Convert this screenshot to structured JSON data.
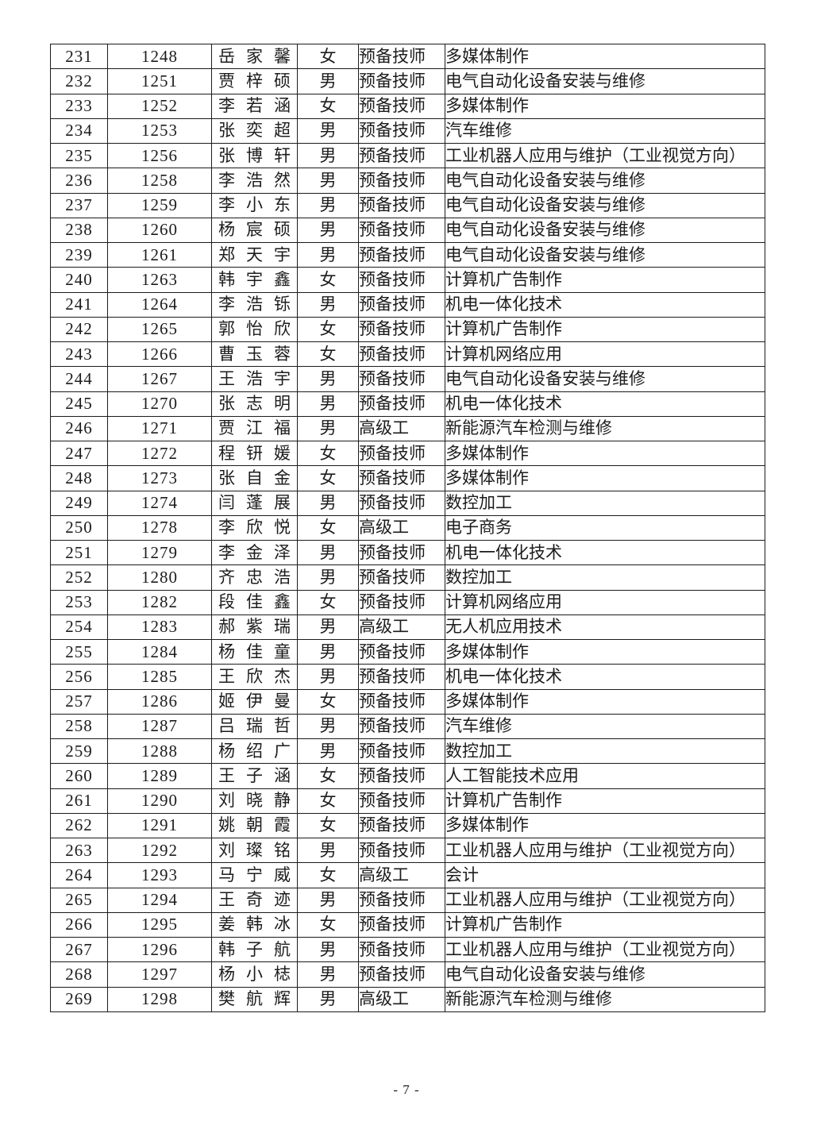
{
  "page": {
    "footer_page_number": "- 7 -"
  },
  "table": {
    "rows": [
      {
        "seq": "231",
        "code": "1248",
        "name": "岳家馨",
        "gender": "女",
        "level": "预备技师",
        "major": "多媒体制作"
      },
      {
        "seq": "232",
        "code": "1251",
        "name": "贾梓硕",
        "gender": "男",
        "level": "预备技师",
        "major": "电气自动化设备安装与维修"
      },
      {
        "seq": "233",
        "code": "1252",
        "name": "李若涵",
        "gender": "女",
        "level": "预备技师",
        "major": "多媒体制作"
      },
      {
        "seq": "234",
        "code": "1253",
        "name": "张奕超",
        "gender": "男",
        "level": "预备技师",
        "major": "汽车维修"
      },
      {
        "seq": "235",
        "code": "1256",
        "name": "张博轩",
        "gender": "男",
        "level": "预备技师",
        "major": "工业机器人应用与维护（工业视觉方向）"
      },
      {
        "seq": "236",
        "code": "1258",
        "name": "李浩然",
        "gender": "男",
        "level": "预备技师",
        "major": "电气自动化设备安装与维修"
      },
      {
        "seq": "237",
        "code": "1259",
        "name": "李小东",
        "gender": "男",
        "level": "预备技师",
        "major": "电气自动化设备安装与维修"
      },
      {
        "seq": "238",
        "code": "1260",
        "name": "杨宸硕",
        "gender": "男",
        "level": "预备技师",
        "major": "电气自动化设备安装与维修"
      },
      {
        "seq": "239",
        "code": "1261",
        "name": "郑天宇",
        "gender": "男",
        "level": "预备技师",
        "major": "电气自动化设备安装与维修"
      },
      {
        "seq": "240",
        "code": "1263",
        "name": "韩宇鑫",
        "gender": "女",
        "level": "预备技师",
        "major": "计算机广告制作"
      },
      {
        "seq": "241",
        "code": "1264",
        "name": "李浩铄",
        "gender": "男",
        "level": "预备技师",
        "major": "机电一体化技术"
      },
      {
        "seq": "242",
        "code": "1265",
        "name": "郭怡欣",
        "gender": "女",
        "level": "预备技师",
        "major": "计算机广告制作"
      },
      {
        "seq": "243",
        "code": "1266",
        "name": "曹玉蓉",
        "gender": "女",
        "level": "预备技师",
        "major": "计算机网络应用"
      },
      {
        "seq": "244",
        "code": "1267",
        "name": "王浩宇",
        "gender": "男",
        "level": "预备技师",
        "major": "电气自动化设备安装与维修"
      },
      {
        "seq": "245",
        "code": "1270",
        "name": "张志明",
        "gender": "男",
        "level": "预备技师",
        "major": "机电一体化技术"
      },
      {
        "seq": "246",
        "code": "1271",
        "name": "贾江福",
        "gender": "男",
        "level": "高级工",
        "major": "新能源汽车检测与维修"
      },
      {
        "seq": "247",
        "code": "1272",
        "name": "程钘媛",
        "gender": "女",
        "level": "预备技师",
        "major": "多媒体制作"
      },
      {
        "seq": "248",
        "code": "1273",
        "name": "张自金",
        "gender": "女",
        "level": "预备技师",
        "major": "多媒体制作"
      },
      {
        "seq": "249",
        "code": "1274",
        "name": "闫蓬展",
        "gender": "男",
        "level": "预备技师",
        "major": "数控加工"
      },
      {
        "seq": "250",
        "code": "1278",
        "name": "李欣悦",
        "gender": "女",
        "level": "高级工",
        "major": "电子商务"
      },
      {
        "seq": "251",
        "code": "1279",
        "name": "李金泽",
        "gender": "男",
        "level": "预备技师",
        "major": "机电一体化技术"
      },
      {
        "seq": "252",
        "code": "1280",
        "name": "齐忠浩",
        "gender": "男",
        "level": "预备技师",
        "major": "数控加工"
      },
      {
        "seq": "253",
        "code": "1282",
        "name": "段佳鑫",
        "gender": "女",
        "level": "预备技师",
        "major": "计算机网络应用"
      },
      {
        "seq": "254",
        "code": "1283",
        "name": "郝紫瑞",
        "gender": "男",
        "level": "高级工",
        "major": "无人机应用技术"
      },
      {
        "seq": "255",
        "code": "1284",
        "name": "杨佳童",
        "gender": "男",
        "level": "预备技师",
        "major": "多媒体制作"
      },
      {
        "seq": "256",
        "code": "1285",
        "name": "王欣杰",
        "gender": "男",
        "level": "预备技师",
        "major": "机电一体化技术"
      },
      {
        "seq": "257",
        "code": "1286",
        "name": "姬伊曼",
        "gender": "女",
        "level": "预备技师",
        "major": "多媒体制作"
      },
      {
        "seq": "258",
        "code": "1287",
        "name": "吕瑞哲",
        "gender": "男",
        "level": "预备技师",
        "major": "汽车维修"
      },
      {
        "seq": "259",
        "code": "1288",
        "name": "杨绍广",
        "gender": "男",
        "level": "预备技师",
        "major": "数控加工"
      },
      {
        "seq": "260",
        "code": "1289",
        "name": "王子涵",
        "gender": "女",
        "level": "预备技师",
        "major": "人工智能技术应用"
      },
      {
        "seq": "261",
        "code": "1290",
        "name": "刘晓静",
        "gender": "女",
        "level": "预备技师",
        "major": "计算机广告制作"
      },
      {
        "seq": "262",
        "code": "1291",
        "name": "姚朝霞",
        "gender": "女",
        "level": "预备技师",
        "major": "多媒体制作"
      },
      {
        "seq": "263",
        "code": "1292",
        "name": "刘璨铭",
        "gender": "男",
        "level": "预备技师",
        "major": "工业机器人应用与维护（工业视觉方向）"
      },
      {
        "seq": "264",
        "code": "1293",
        "name": "马宁威",
        "gender": "女",
        "level": "高级工",
        "major": "会计"
      },
      {
        "seq": "265",
        "code": "1294",
        "name": "王奇迹",
        "gender": "男",
        "level": "预备技师",
        "major": "工业机器人应用与维护（工业视觉方向）"
      },
      {
        "seq": "266",
        "code": "1295",
        "name": "姜韩冰",
        "gender": "女",
        "level": "预备技师",
        "major": "计算机广告制作"
      },
      {
        "seq": "267",
        "code": "1296",
        "name": "韩子航",
        "gender": "男",
        "level": "预备技师",
        "major": "工业机器人应用与维护（工业视觉方向）"
      },
      {
        "seq": "268",
        "code": "1297",
        "name": "杨小梽",
        "gender": "男",
        "level": "预备技师",
        "major": "电气自动化设备安装与维修"
      },
      {
        "seq": "269",
        "code": "1298",
        "name": "樊航辉",
        "gender": "男",
        "level": "高级工",
        "major": "新能源汽车检测与维修"
      }
    ]
  }
}
